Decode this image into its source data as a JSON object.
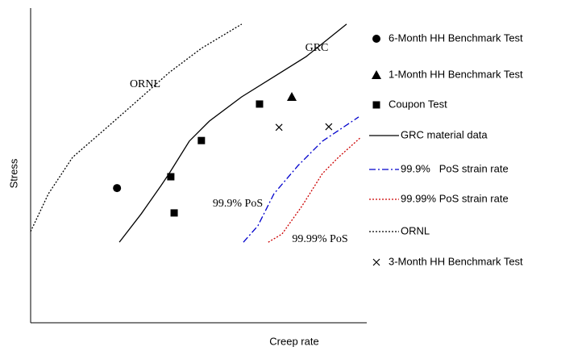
{
  "chart_data": {
    "type": "line",
    "x_label": "Creep rate",
    "y_label": "Stress",
    "xlim": [
      0,
      100
    ],
    "ylim": [
      0,
      100
    ],
    "series": [
      {
        "name": "6-Month HH Benchmark Test",
        "color": "#000000",
        "marker": "circle",
        "x": [
          25.7
        ],
        "values": [
          42.8
        ]
      },
      {
        "name": "1-Month HH Benchmark Test",
        "color": "#000000",
        "marker": "triangle",
        "x": [
          77.7
        ],
        "values": [
          71.8
        ]
      },
      {
        "name": "Coupon Test",
        "color": "#000000",
        "marker": "square",
        "x": [
          41.7,
          42.7,
          50.8,
          68.1
        ],
        "values": [
          46.4,
          34.9,
          57.9,
          69.5
        ]
      },
      {
        "name": "GRC material data",
        "color": "#000000",
        "line": "solid",
        "x": [
          26.4,
          32.9,
          38.8,
          41.2,
          47.2,
          53.2,
          62.8,
          72.4,
          82.0,
          94.0
        ],
        "values": [
          25.6,
          34.6,
          43.6,
          47.4,
          57.7,
          64.1,
          71.8,
          78.2,
          84.6,
          94.9
        ]
      },
      {
        "name": "99.9%   PoS strain rate",
        "color": "#0000cc",
        "line": "dashdot",
        "x": [
          63.3,
          67.6,
          72.4,
          79.6,
          86.8,
          97.6
        ],
        "values": [
          25.6,
          30.8,
          41.0,
          50.0,
          57.7,
          65.4
        ]
      },
      {
        "name": "99.99% PoS strain rate",
        "color": "#cc0000",
        "line": "dotted",
        "x": [
          70.7,
          74.8,
          80.8,
          86.8,
          91.6,
          98.3
        ],
        "values": [
          25.6,
          28.2,
          37.2,
          47.4,
          52.6,
          59.0
        ]
      },
      {
        "name": "ORNL",
        "color": "#000000",
        "line": "dotted",
        "x": [
          0,
          5.3,
          12.5,
          22.1,
          31.7,
          41.2,
          50.8,
          62.8
        ],
        "values": [
          29.0,
          41.0,
          52.6,
          61.5,
          70.5,
          79.5,
          87.2,
          94.9
        ]
      },
      {
        "name": "3-Month HH Benchmark Test",
        "color": "#000000",
        "marker": "x",
        "x": [
          73.9,
          88.7
        ],
        "values": [
          62.1,
          62.3
        ]
      }
    ],
    "annotations": [
      "ORNL",
      "GRC",
      "99.9% PoS",
      "99.99% PoS"
    ]
  }
}
